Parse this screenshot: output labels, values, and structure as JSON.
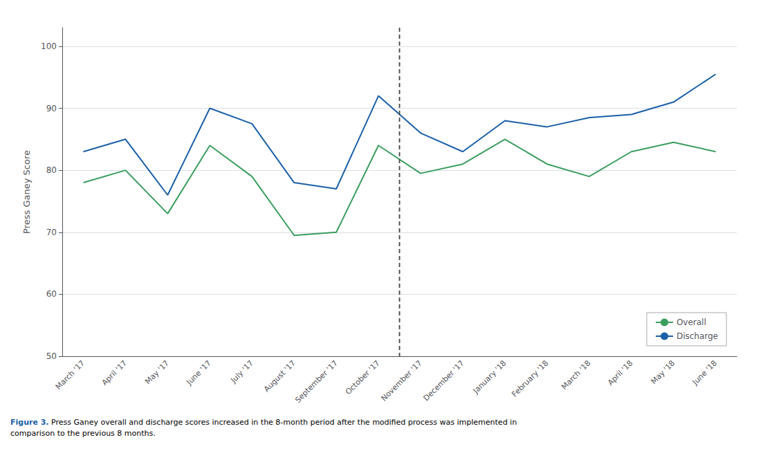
{
  "chart_data": {
    "type": "line",
    "categories": [
      "March '17",
      "April '17",
      "May '17",
      "June '17",
      "July '17",
      "August '17",
      "September '17",
      "October '17",
      "November '17",
      "December '17",
      "January '18",
      "February '18",
      "March '18",
      "April '18",
      "May '18",
      "June '18"
    ],
    "series": [
      {
        "name": "Overall",
        "color": "#3a9e5f",
        "values": [
          78,
          80,
          73,
          84,
          79,
          69.5,
          70,
          84,
          79.5,
          81,
          85,
          81,
          79,
          83,
          84.5,
          83
        ]
      },
      {
        "name": "Discharge",
        "color": "#1a5fa8",
        "values": [
          83,
          85,
          76,
          90,
          87.5,
          78,
          77,
          92,
          86,
          83,
          88,
          87,
          88.5,
          89,
          91,
          95.5
        ]
      }
    ],
    "ylabel": "Press Ganey Score",
    "ylim": [
      50,
      103
    ],
    "yticks": [
      50,
      60,
      70,
      80,
      90,
      100
    ],
    "grid": true,
    "legend": "lower right",
    "annotations": [
      {
        "type": "vline",
        "between": [
          "October '17",
          "November '17"
        ],
        "line_style": "dashed",
        "color": "#444444"
      }
    ],
    "caption": [
      {
        "text": "Figure 3.",
        "color": "#1a5fa8"
      },
      {
        "text": "Press Ganey overall and discharge scores increased in the 8-month period after the modified process was implemented in\ncomparison to the previous 8 months."
      }
    ]
  }
}
